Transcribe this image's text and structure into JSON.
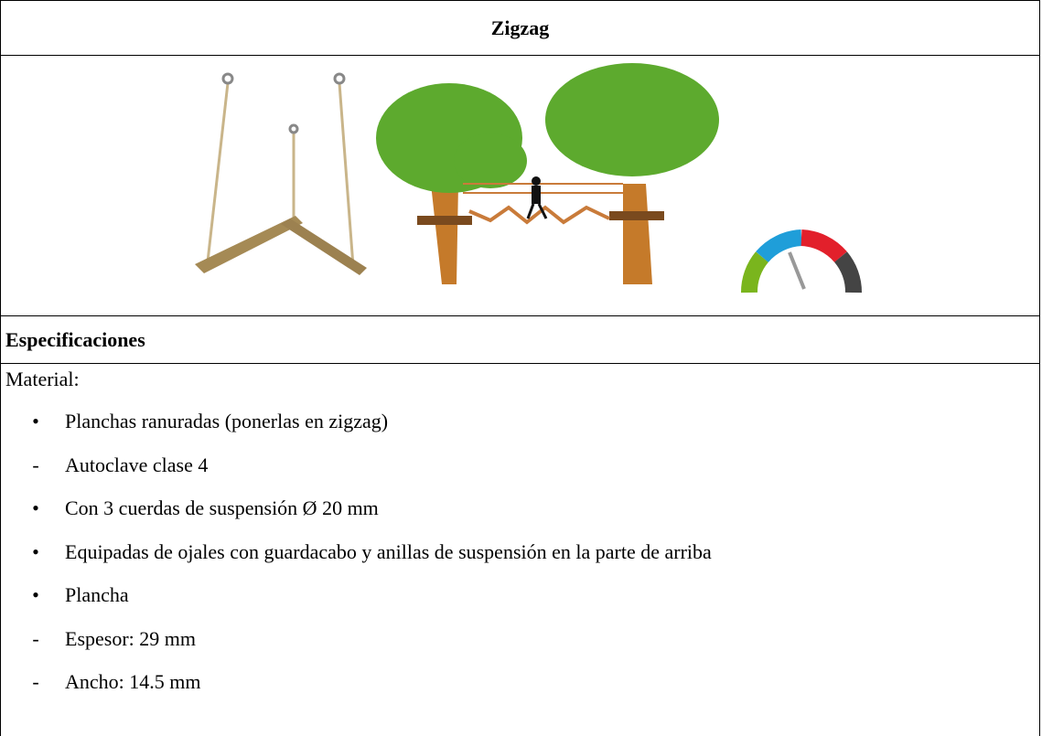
{
  "title": "Zigzag",
  "section": "Especificaciones",
  "intro": "Material:",
  "items": [
    {
      "marker": "•",
      "text": "Planchas ranuradas (ponerlas en zigzag)"
    },
    {
      "marker": "-",
      "text": "Autoclave clase 4"
    },
    {
      "marker": "•",
      "text": "Con 3 cuerdas de suspensión Ø 20 mm"
    },
    {
      "marker": "•",
      "text": "Equipadas de ojales con guardacabo y anillas de suspensión en la parte de arriba"
    },
    {
      "marker": "•",
      "text": "Plancha"
    },
    {
      "marker": "-",
      "text": "Espesor: 29 mm"
    },
    {
      "marker": "-",
      "text": "Ancho: 14.5 mm"
    }
  ]
}
